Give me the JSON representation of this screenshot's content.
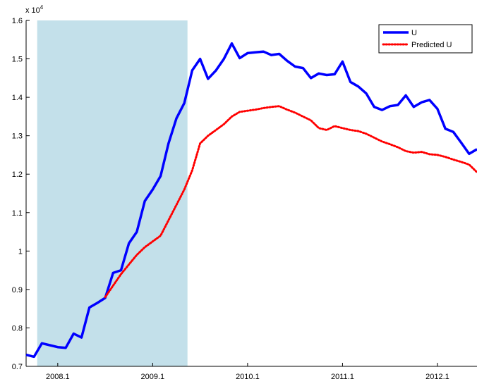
{
  "chart_data": {
    "type": "line",
    "y_multiplier": {
      "base": "x 10",
      "exponent": "4"
    },
    "categories": [
      null,
      null,
      null,
      null,
      "2008.1",
      null,
      null,
      null,
      null,
      null,
      null,
      null,
      null,
      null,
      null,
      null,
      "2009.1",
      null,
      null,
      null,
      null,
      null,
      null,
      null,
      null,
      null,
      null,
      null,
      "2010.1",
      null,
      null,
      null,
      null,
      null,
      null,
      null,
      null,
      null,
      null,
      null,
      "2011.1",
      null,
      null,
      null,
      null,
      null,
      null,
      null,
      null,
      null,
      null,
      null,
      "2012.1",
      null,
      null,
      null,
      null,
      null
    ],
    "series": [
      {
        "name": "U",
        "color": "#0000ff",
        "style": "solid",
        "values": [
          0.73,
          0.725,
          0.76,
          0.755,
          0.75,
          0.748,
          0.785,
          0.775,
          0.853,
          0.865,
          0.878,
          0.943,
          0.95,
          1.02,
          1.05,
          1.13,
          1.16,
          1.195,
          1.28,
          1.345,
          1.385,
          1.47,
          1.5,
          1.448,
          1.47,
          1.5,
          1.54,
          1.502,
          1.515,
          1.517,
          1.519,
          1.51,
          1.513,
          1.495,
          1.48,
          1.476,
          1.45,
          1.462,
          1.458,
          1.46,
          1.493,
          1.44,
          1.428,
          1.41,
          1.375,
          1.367,
          1.377,
          1.38,
          1.405,
          1.375,
          1.387,
          1.393,
          1.37,
          1.318,
          1.31,
          1.282,
          1.253,
          1.265
        ]
      },
      {
        "name": "Predicted U",
        "color": "#ff0000",
        "style": "dotted",
        "values": [
          null,
          null,
          null,
          null,
          null,
          null,
          null,
          null,
          null,
          null,
          0.88,
          0.91,
          0.94,
          0.965,
          0.99,
          1.01,
          1.025,
          1.04,
          1.08,
          1.12,
          1.16,
          1.21,
          1.28,
          1.3,
          1.315,
          1.33,
          1.35,
          1.362,
          1.365,
          1.368,
          1.372,
          1.375,
          1.377,
          1.368,
          1.36,
          1.35,
          1.34,
          1.32,
          1.315,
          1.325,
          1.32,
          1.315,
          1.312,
          1.305,
          1.295,
          1.285,
          1.278,
          1.27,
          1.26,
          1.256,
          1.258,
          1.252,
          1.25,
          1.245,
          1.238,
          1.232,
          1.225,
          1.205
        ]
      }
    ],
    "shade_range": [
      1.4,
      20.4
    ],
    "shade_color": "#c3e0ea",
    "ylim": [
      0.7,
      1.6
    ],
    "yticks": [
      0.7,
      0.8,
      0.9,
      1,
      1.1,
      1.2,
      1.3,
      1.4,
      1.5,
      1.6
    ],
    "legend": "northeast"
  }
}
